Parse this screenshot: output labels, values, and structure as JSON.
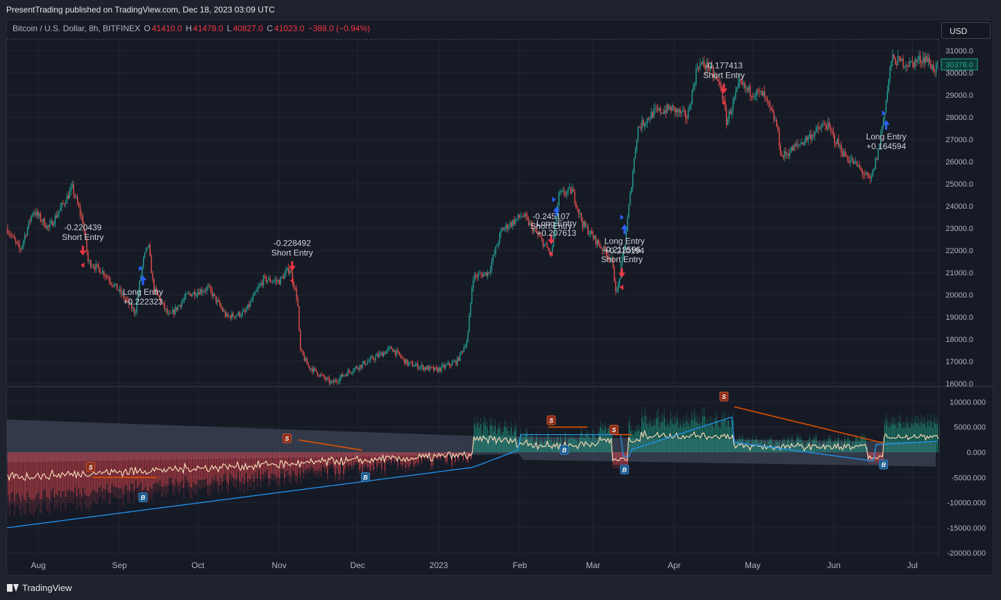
{
  "header": {
    "published": "PresentTrading published on TradingView.com, Dec 18, 2023 03:09 UTC"
  },
  "legend": {
    "symbol": "Bitcoin / U.S. Dollar, 8h, BITFINEX",
    "o_label": "O",
    "o_value": "41410.0",
    "h_label": "H",
    "h_value": "41478.0",
    "l_label": "L",
    "l_value": "40827.0",
    "c_label": "C",
    "c_value": "41023.0",
    "change": "−388.0 (−0.94%)"
  },
  "currency_button": "USD",
  "footer": {
    "brand": "TradingView"
  },
  "colors": {
    "bg": "#161a25",
    "up": "#26a69a",
    "down": "#ef5350",
    "long": "#2962ff",
    "short": "#f23645",
    "label": "#d1d4dc"
  },
  "chart_data": [
    {
      "type": "candlestick",
      "title": "Bitcoin / U.S. Dollar, 8h, BITFINEX",
      "x_ticks": [
        "Aug",
        "Sep",
        "Oct",
        "Nov",
        "Dec",
        "2023",
        "Feb",
        "Mar",
        "Apr",
        "May",
        "Jun",
        "Jul"
      ],
      "y_ticks": [
        "31000.0",
        "30000.0",
        "29000.0",
        "28000.0",
        "27000.0",
        "26000.0",
        "25000.0",
        "24000.0",
        "23000.0",
        "22000.0",
        "21000.0",
        "20000.0",
        "19000.0",
        "18000.0",
        "17000.0",
        "16000.0"
      ],
      "ylim": [
        16000,
        31500
      ],
      "last_price": "30378.0",
      "price_path": [
        [
          "2022-07-20",
          23000
        ],
        [
          "2022-07-25",
          22000
        ],
        [
          "2022-07-30",
          23800
        ],
        [
          "2022-08-05",
          23000
        ],
        [
          "2022-08-10",
          24000
        ],
        [
          "2022-08-14",
          24800
        ],
        [
          "2022-08-18",
          23300
        ],
        [
          "2022-08-20",
          21500
        ],
        [
          "2022-08-26",
          21000
        ],
        [
          "2022-09-02",
          20000
        ],
        [
          "2022-09-07",
          19200
        ],
        [
          "2022-09-10",
          21500
        ],
        [
          "2022-09-12",
          22300
        ],
        [
          "2022-09-14",
          20300
        ],
        [
          "2022-09-20",
          19000
        ],
        [
          "2022-09-27",
          20000
        ],
        [
          "2022-10-05",
          20300
        ],
        [
          "2022-10-12",
          19000
        ],
        [
          "2022-10-19",
          19200
        ],
        [
          "2022-10-26",
          20700
        ],
        [
          "2022-11-01",
          20600
        ],
        [
          "2022-11-05",
          21200
        ],
        [
          "2022-11-08",
          19800
        ],
        [
          "2022-11-09",
          17500
        ],
        [
          "2022-11-12",
          16800
        ],
        [
          "2022-11-21",
          16000
        ],
        [
          "2022-11-27",
          16500
        ],
        [
          "2022-12-05",
          17000
        ],
        [
          "2022-12-14",
          17600
        ],
        [
          "2022-12-20",
          16900
        ],
        [
          "2022-12-31",
          16600
        ],
        [
          "2023-01-08",
          17000
        ],
        [
          "2023-01-12",
          18000
        ],
        [
          "2023-01-14",
          20800
        ],
        [
          "2023-01-20",
          21000
        ],
        [
          "2023-01-25",
          22900
        ],
        [
          "2023-02-02",
          23600
        ],
        [
          "2023-02-09",
          22500
        ],
        [
          "2023-02-13",
          21800
        ],
        [
          "2023-02-16",
          24500
        ],
        [
          "2023-02-21",
          24700
        ],
        [
          "2023-02-25",
          23200
        ],
        [
          "2023-03-03",
          22300
        ],
        [
          "2023-03-08",
          21600
        ],
        [
          "2023-03-10",
          20000
        ],
        [
          "2023-03-13",
          22200
        ],
        [
          "2023-03-15",
          24300
        ],
        [
          "2023-03-18",
          27500
        ],
        [
          "2023-03-24",
          28200
        ],
        [
          "2023-03-31",
          28400
        ],
        [
          "2023-04-06",
          28000
        ],
        [
          "2023-04-10",
          30400
        ],
        [
          "2023-04-14",
          30300
        ],
        [
          "2023-04-19",
          29300
        ],
        [
          "2023-04-21",
          27800
        ],
        [
          "2023-04-26",
          29500
        ],
        [
          "2023-04-29",
          29200
        ],
        [
          "2023-05-05",
          29000
        ],
        [
          "2023-05-10",
          27700
        ],
        [
          "2023-05-12",
          26200
        ],
        [
          "2023-05-20",
          26900
        ],
        [
          "2023-05-29",
          27700
        ],
        [
          "2023-06-05",
          26300
        ],
        [
          "2023-06-10",
          25800
        ],
        [
          "2023-06-15",
          25100
        ],
        [
          "2023-06-18",
          26500
        ],
        [
          "2023-06-21",
          28800
        ],
        [
          "2023-06-23",
          30600
        ],
        [
          "2023-06-30",
          30400
        ],
        [
          "2023-07-06",
          30700
        ],
        [
          "2023-07-09",
          30200
        ]
      ],
      "annotations": [
        {
          "label": "-0.220439",
          "label2": "Short Entry",
          "date": "2022-08-18",
          "price": 22900
        },
        {
          "label": "Long Entry",
          "label2": "+0.222323",
          "date": "2022-09-10",
          "price": 20000
        },
        {
          "label": "-0.228492",
          "label2": "Short Entry",
          "date": "2022-11-06",
          "price": 22200
        },
        {
          "label": "-0.245107",
          "label2": "Short Entry",
          "date": "2023-02-13",
          "price": 23400
        },
        {
          "label": "Long Entry",
          "label2": "+0.207613",
          "date": "2023-02-15",
          "price": 23100
        },
        {
          "label": "Long Entry",
          "label2": "+0.210194",
          "date": "2023-03-13",
          "price": 22300
        },
        {
          "label": "-0.212596",
          "label2": "Short Entry",
          "date": "2023-03-12",
          "price": 21900
        },
        {
          "label": "-0.177413",
          "label2": "Short Entry",
          "date": "2023-04-20",
          "price": 30200
        },
        {
          "label": "Long Entry",
          "label2": "+0.164594",
          "date": "2023-06-21",
          "price": 27000
        }
      ]
    },
    {
      "type": "area",
      "y_ticks": [
        "10000.000",
        "5000.000",
        "0.000",
        "-5000.000",
        "-10000.000",
        "-15000.000",
        "-20000.000"
      ],
      "ylim": [
        -20000,
        10000
      ],
      "signals": [
        {
          "text": "S",
          "kind": "sell",
          "date": "2022-08-21",
          "value": -3000
        },
        {
          "text": "B",
          "kind": "buy",
          "date": "2022-09-10",
          "value": -9000
        },
        {
          "text": "S",
          "kind": "sell",
          "date": "2022-11-04",
          "value": 2700
        },
        {
          "text": "B",
          "kind": "buy",
          "date": "2022-12-04",
          "value": -5000
        },
        {
          "text": "S",
          "kind": "sell",
          "date": "2023-02-13",
          "value": 6300
        },
        {
          "text": "B",
          "kind": "buy",
          "date": "2023-02-18",
          "value": 400
        },
        {
          "text": "S",
          "kind": "sell",
          "date": "2023-03-09",
          "value": 4400
        },
        {
          "text": "B",
          "kind": "buy",
          "date": "2023-03-13",
          "value": -3500
        },
        {
          "text": "S",
          "kind": "sell",
          "date": "2023-04-20",
          "value": 11000
        },
        {
          "text": "B",
          "kind": "buy",
          "date": "2023-06-20",
          "value": -2500
        }
      ]
    }
  ]
}
